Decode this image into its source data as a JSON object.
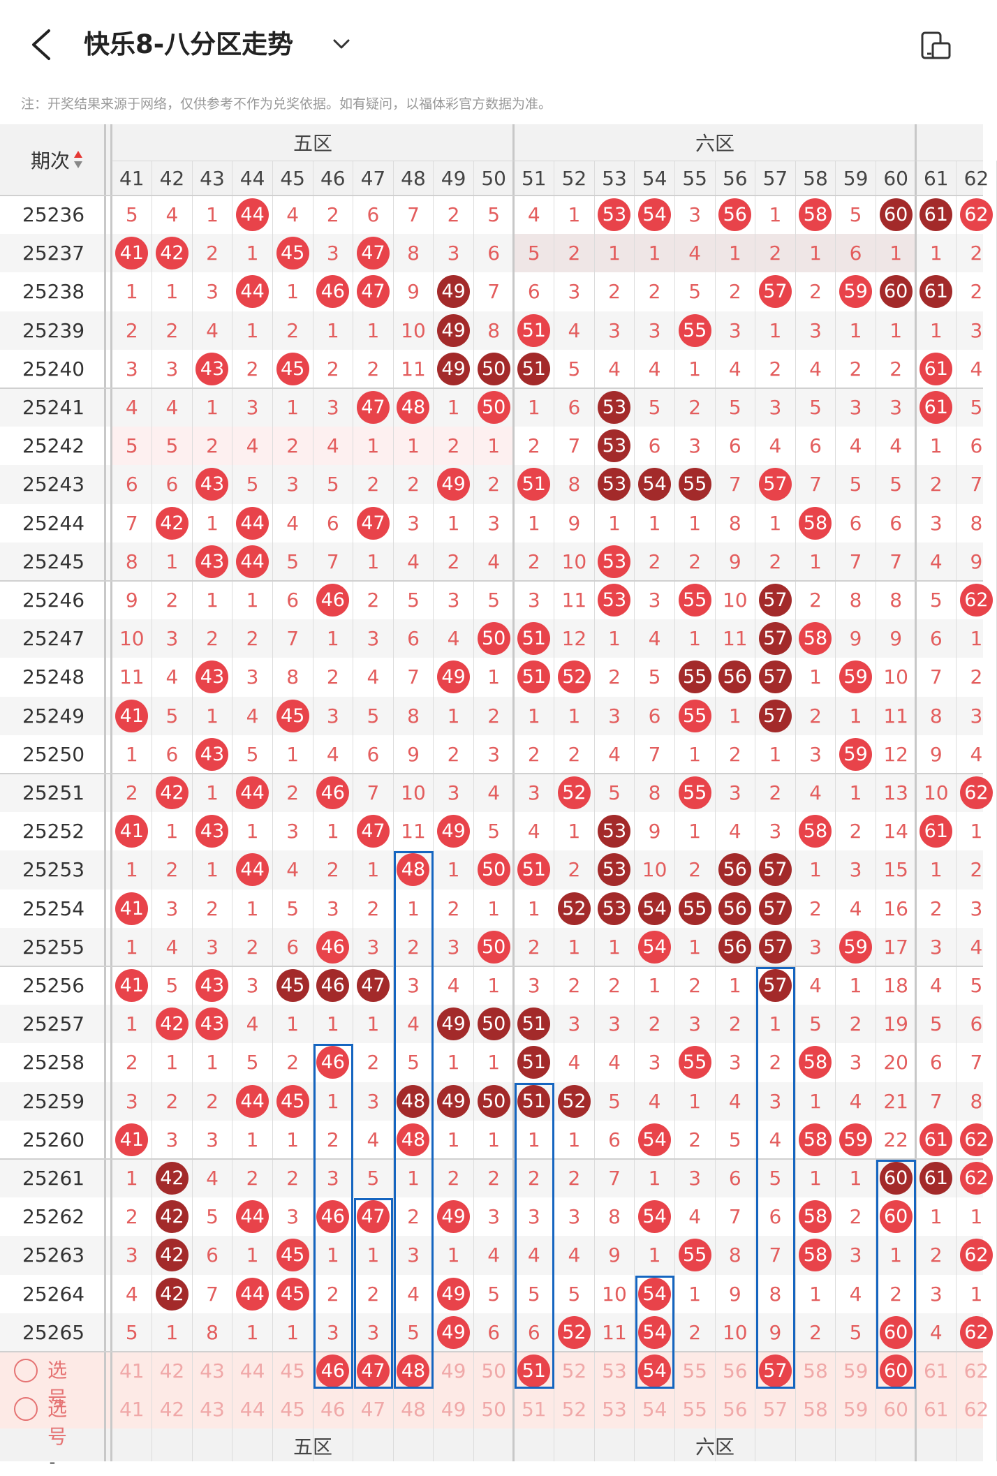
{
  "header": {
    "title": "快乐8-八分区走势",
    "notice": "注：开奖结果来源于网络，仅供参考不作为兑奖依据。如有疑问，以福体彩官方数据为准。",
    "back_icon": "chevron-left-icon",
    "dropdown_icon": "chevron-down-icon",
    "device_icon": "device-rotate-icon"
  },
  "table": {
    "issue_header": "期次",
    "sort_icon": "sort-arrows-icon",
    "zones": [
      {
        "label": "五区",
        "start": 41,
        "end": 50
      },
      {
        "label": "六区",
        "start": 51,
        "end": 60
      }
    ],
    "columns": [
      "41",
      "42",
      "43",
      "44",
      "45",
      "46",
      "47",
      "48",
      "49",
      "50",
      "51",
      "52",
      "53",
      "54",
      "55",
      "56",
      "57",
      "58",
      "59",
      "60",
      "61",
      "62"
    ],
    "rows": [
      {
        "issue": "25236",
        "cells": [
          "5",
          "4",
          "1",
          "44",
          "4",
          "2",
          "6",
          "7",
          "2",
          "5",
          "4",
          "1",
          "53",
          "54",
          "3",
          "56",
          "1",
          "58",
          "5",
          "60",
          "61",
          "62"
        ]
      },
      {
        "issue": "25237",
        "cells": [
          "41",
          "42",
          "2",
          "1",
          "45",
          "3",
          "47",
          "8",
          "3",
          "6",
          "5",
          "2",
          "1",
          "1",
          "4",
          "1",
          "2",
          "1",
          "6",
          "1",
          "1",
          "2"
        ]
      },
      {
        "issue": "25238",
        "cells": [
          "1",
          "1",
          "3",
          "44",
          "1",
          "46",
          "47",
          "9",
          "49",
          "7",
          "6",
          "3",
          "2",
          "2",
          "5",
          "2",
          "57",
          "2",
          "59",
          "60",
          "61",
          "2"
        ]
      },
      {
        "issue": "25239",
        "cells": [
          "2",
          "2",
          "4",
          "1",
          "2",
          "1",
          "1",
          "10",
          "49",
          "8",
          "51",
          "4",
          "3",
          "3",
          "55",
          "3",
          "1",
          "3",
          "1",
          "1",
          "1",
          "3"
        ]
      },
      {
        "issue": "25240",
        "cells": [
          "3",
          "3",
          "43",
          "2",
          "45",
          "2",
          "2",
          "11",
          "49",
          "50",
          "51",
          "5",
          "4",
          "4",
          "1",
          "4",
          "2",
          "4",
          "2",
          "2",
          "61",
          "4"
        ]
      },
      {
        "issue": "25241",
        "cells": [
          "4",
          "4",
          "1",
          "3",
          "1",
          "3",
          "47",
          "48",
          "1",
          "50",
          "1",
          "6",
          "53",
          "5",
          "2",
          "5",
          "3",
          "5",
          "3",
          "3",
          "61",
          "5"
        ]
      },
      {
        "issue": "25242",
        "cells": [
          "5",
          "5",
          "2",
          "4",
          "2",
          "4",
          "1",
          "1",
          "2",
          "1",
          "2",
          "7",
          "53",
          "6",
          "3",
          "6",
          "4",
          "6",
          "4",
          "4",
          "1",
          "6"
        ]
      },
      {
        "issue": "25243",
        "cells": [
          "6",
          "6",
          "43",
          "5",
          "3",
          "5",
          "2",
          "2",
          "49",
          "2",
          "51",
          "8",
          "53",
          "54",
          "55",
          "7",
          "57",
          "7",
          "5",
          "5",
          "2",
          "7"
        ]
      },
      {
        "issue": "25244",
        "cells": [
          "7",
          "42",
          "1",
          "44",
          "4",
          "6",
          "47",
          "3",
          "1",
          "3",
          "1",
          "9",
          "1",
          "1",
          "1",
          "8",
          "1",
          "58",
          "6",
          "6",
          "3",
          "8"
        ]
      },
      {
        "issue": "25245",
        "cells": [
          "8",
          "1",
          "43",
          "44",
          "5",
          "7",
          "1",
          "4",
          "2",
          "4",
          "2",
          "10",
          "53",
          "2",
          "2",
          "9",
          "2",
          "1",
          "7",
          "7",
          "4",
          "9"
        ]
      },
      {
        "issue": "25246",
        "cells": [
          "9",
          "2",
          "1",
          "1",
          "6",
          "46",
          "2",
          "5",
          "3",
          "5",
          "3",
          "11",
          "53",
          "3",
          "55",
          "10",
          "57",
          "2",
          "8",
          "8",
          "5",
          "62"
        ]
      },
      {
        "issue": "25247",
        "cells": [
          "10",
          "3",
          "2",
          "2",
          "7",
          "1",
          "3",
          "6",
          "4",
          "50",
          "51",
          "12",
          "1",
          "4",
          "1",
          "11",
          "57",
          "58",
          "9",
          "9",
          "6",
          "1"
        ]
      },
      {
        "issue": "25248",
        "cells": [
          "11",
          "4",
          "43",
          "3",
          "8",
          "2",
          "4",
          "7",
          "49",
          "1",
          "51",
          "52",
          "2",
          "5",
          "55",
          "56",
          "57",
          "1",
          "59",
          "10",
          "7",
          "2"
        ]
      },
      {
        "issue": "25249",
        "cells": [
          "41",
          "5",
          "1",
          "4",
          "45",
          "3",
          "5",
          "8",
          "1",
          "2",
          "1",
          "1",
          "3",
          "6",
          "55",
          "1",
          "57",
          "2",
          "1",
          "11",
          "8",
          "3"
        ]
      },
      {
        "issue": "25250",
        "cells": [
          "1",
          "6",
          "43",
          "5",
          "1",
          "4",
          "6",
          "9",
          "2",
          "3",
          "2",
          "2",
          "4",
          "7",
          "1",
          "2",
          "1",
          "3",
          "59",
          "12",
          "9",
          "4"
        ]
      },
      {
        "issue": "25251",
        "cells": [
          "2",
          "42",
          "1",
          "44",
          "2",
          "46",
          "7",
          "10",
          "3",
          "4",
          "3",
          "52",
          "5",
          "8",
          "55",
          "3",
          "2",
          "4",
          "1",
          "13",
          "10",
          "62"
        ]
      },
      {
        "issue": "25252",
        "cells": [
          "41",
          "1",
          "43",
          "1",
          "3",
          "1",
          "47",
          "11",
          "49",
          "5",
          "4",
          "1",
          "53",
          "9",
          "1",
          "4",
          "3",
          "58",
          "2",
          "14",
          "61",
          "1"
        ]
      },
      {
        "issue": "25253",
        "cells": [
          "1",
          "2",
          "1",
          "44",
          "4",
          "2",
          "1",
          "48",
          "1",
          "50",
          "51",
          "2",
          "53",
          "10",
          "2",
          "56",
          "57",
          "1",
          "3",
          "15",
          "1",
          "2"
        ]
      },
      {
        "issue": "25254",
        "cells": [
          "41",
          "3",
          "2",
          "1",
          "5",
          "3",
          "2",
          "1",
          "2",
          "1",
          "1",
          "52",
          "53",
          "54",
          "55",
          "56",
          "57",
          "2",
          "4",
          "16",
          "2",
          "3"
        ]
      },
      {
        "issue": "25255",
        "cells": [
          "1",
          "4",
          "3",
          "2",
          "6",
          "46",
          "3",
          "2",
          "3",
          "50",
          "2",
          "1",
          "1",
          "54",
          "1",
          "56",
          "57",
          "3",
          "59",
          "17",
          "3",
          "4"
        ]
      },
      {
        "issue": "25256",
        "cells": [
          "41",
          "5",
          "43",
          "3",
          "45",
          "46",
          "47",
          "3",
          "4",
          "1",
          "3",
          "2",
          "2",
          "1",
          "2",
          "1",
          "57",
          "4",
          "1",
          "18",
          "4",
          "5"
        ]
      },
      {
        "issue": "25257",
        "cells": [
          "1",
          "42",
          "43",
          "4",
          "1",
          "1",
          "1",
          "4",
          "49",
          "50",
          "51",
          "3",
          "3",
          "2",
          "3",
          "2",
          "1",
          "5",
          "2",
          "19",
          "5",
          "6"
        ]
      },
      {
        "issue": "25258",
        "cells": [
          "2",
          "1",
          "1",
          "5",
          "2",
          "46",
          "2",
          "5",
          "1",
          "1",
          "51",
          "4",
          "4",
          "3",
          "55",
          "3",
          "2",
          "58",
          "3",
          "20",
          "6",
          "7"
        ]
      },
      {
        "issue": "25259",
        "cells": [
          "3",
          "2",
          "2",
          "44",
          "45",
          "1",
          "3",
          "48",
          "49",
          "50",
          "51",
          "52",
          "5",
          "4",
          "1",
          "4",
          "3",
          "1",
          "4",
          "21",
          "7",
          "8"
        ]
      },
      {
        "issue": "25260",
        "cells": [
          "41",
          "3",
          "3",
          "1",
          "1",
          "2",
          "4",
          "48",
          "1",
          "1",
          "1",
          "1",
          "6",
          "54",
          "2",
          "5",
          "4",
          "58",
          "59",
          "22",
          "61",
          "62"
        ]
      },
      {
        "issue": "25261",
        "cells": [
          "1",
          "42",
          "4",
          "2",
          "2",
          "3",
          "5",
          "1",
          "2",
          "2",
          "2",
          "2",
          "7",
          "1",
          "3",
          "6",
          "5",
          "1",
          "1",
          "60",
          "61",
          "62"
        ]
      },
      {
        "issue": "25262",
        "cells": [
          "2",
          "42",
          "5",
          "44",
          "3",
          "46",
          "47",
          "2",
          "49",
          "3",
          "3",
          "3",
          "8",
          "54",
          "4",
          "7",
          "6",
          "58",
          "2",
          "60",
          "1",
          "1"
        ]
      },
      {
        "issue": "25263",
        "cells": [
          "3",
          "42",
          "6",
          "1",
          "45",
          "1",
          "1",
          "3",
          "1",
          "4",
          "4",
          "4",
          "9",
          "1",
          "55",
          "8",
          "7",
          "58",
          "3",
          "1",
          "2",
          "62"
        ]
      },
      {
        "issue": "25264",
        "cells": [
          "4",
          "42",
          "7",
          "44",
          "45",
          "2",
          "2",
          "4",
          "49",
          "5",
          "5",
          "5",
          "10",
          "54",
          "1",
          "9",
          "8",
          "1",
          "4",
          "2",
          "3",
          "1"
        ]
      },
      {
        "issue": "25265",
        "cells": [
          "5",
          "1",
          "8",
          "1",
          "1",
          "3",
          "3",
          "5",
          "49",
          "6",
          "6",
          "52",
          "11",
          "54",
          "2",
          "10",
          "9",
          "2",
          "5",
          "60",
          "4",
          "62"
        ]
      }
    ],
    "dark_cells": [
      "25236:60",
      "25236:61",
      "25238:49",
      "25238:60",
      "25238:61",
      "25239:49",
      "25240:49",
      "25240:50",
      "25240:51",
      "25241:53",
      "25242:53",
      "25243:53",
      "25243:54",
      "25243:55",
      "25246:57",
      "25247:57",
      "25248:55",
      "25248:56",
      "25248:57",
      "25249:57",
      "25252:53",
      "25253:53",
      "25253:56",
      "25253:57",
      "25254:52",
      "25254:53",
      "25254:54",
      "25254:55",
      "25254:56",
      "25254:57",
      "25255:56",
      "25255:57",
      "25256:45",
      "25256:46",
      "25256:47",
      "25256:57",
      "25257:49",
      "25257:50",
      "25257:51",
      "25258:51",
      "25259:48",
      "25259:49",
      "25259:50",
      "25259:51",
      "25259:52",
      "25261:42",
      "25261:60",
      "25261:61",
      "25262:42",
      "25263:42",
      "25264:42"
    ],
    "pick_rows": [
      {
        "label": "选号",
        "cells": [
          "41",
          "42",
          "43",
          "44",
          "45",
          "46",
          "47",
          "48",
          "49",
          "50",
          "51",
          "52",
          "53",
          "54",
          "55",
          "56",
          "57",
          "58",
          "59",
          "60",
          "61",
          "62"
        ],
        "selected": [
          "46",
          "47",
          "48",
          "51",
          "54",
          "57",
          "60"
        ]
      },
      {
        "label": "选号",
        "cells": [
          "41",
          "42",
          "43",
          "44",
          "45",
          "46",
          "47",
          "48",
          "49",
          "50",
          "51",
          "52",
          "53",
          "54",
          "55",
          "56",
          "57",
          "58",
          "59",
          "60",
          "61",
          "62"
        ],
        "selected": []
      }
    ],
    "footer_zones": [
      "五区",
      "六区"
    ],
    "footer_left": "-",
    "colors": {
      "ball_red": "#e8434a",
      "ball_dark": "#a32a2a",
      "miss_text": "#e35d5d",
      "selection_box": "#1565c0"
    }
  }
}
